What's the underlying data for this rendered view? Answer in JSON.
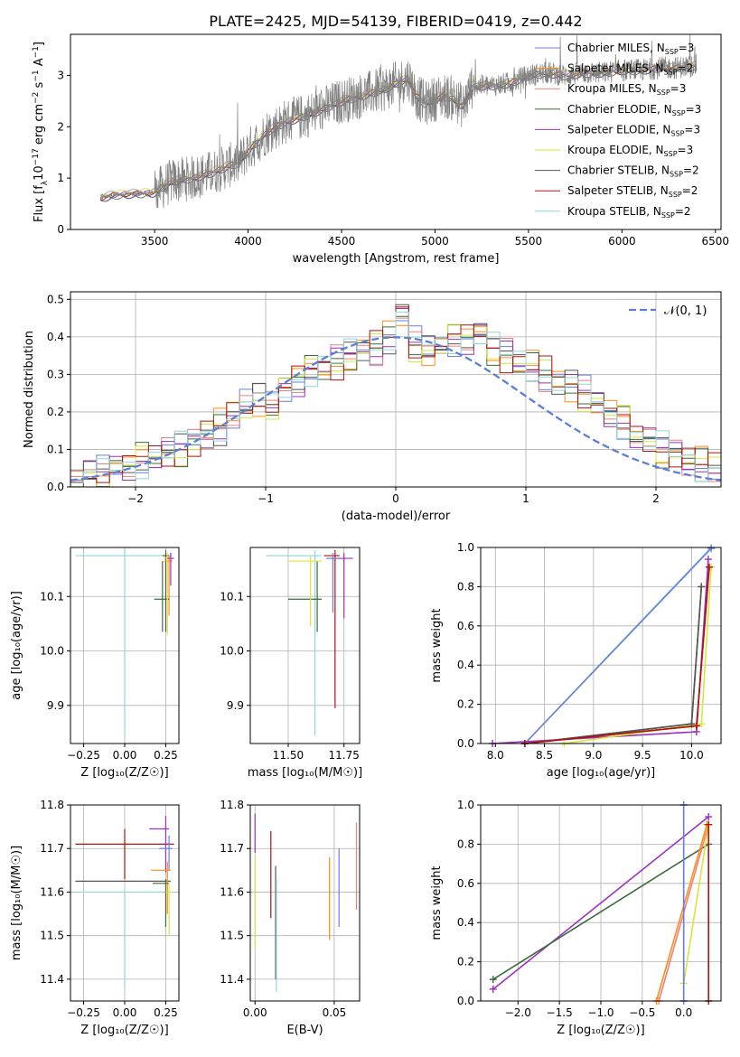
{
  "title": "PLATE=2425, MJD=54139, FIBERID=0419, z=0.442",
  "colors": {
    "Chabrier MILES": "#6a7fdc",
    "Salpeter MILES": "#ff8c1a",
    "Kroupa MILES": "#e8827a",
    "Chabrier ELODIE": "#3b6b3b",
    "Salpeter ELODIE": "#9b30c0",
    "Kroupa ELODIE": "#d6e63a",
    "Chabrier STELIB": "#555555",
    "Salpeter STELIB": "#b01010",
    "Kroupa STELIB": "#8fd6d6",
    "data": "#808080",
    "normal": "#5b7fd6"
  },
  "chart_data": [
    {
      "type": "line",
      "xlabel": "wavelength [Angstrom, rest frame]",
      "ylabel": "Flux [f_λ 10^-17 erg cm^-2 s^-1 A^-1]",
      "xlim": [
        3050,
        6530
      ],
      "ylim": [
        0,
        3.8
      ],
      "xticks": [
        "3500",
        "4000",
        "4500",
        "5000",
        "5500",
        "6000",
        "6500"
      ],
      "yticks": [
        "0",
        "1",
        "2",
        "3"
      ],
      "grid": false,
      "legend_position": "right",
      "legend": [
        {
          "label": "Chabrier MILES, N",
          "sub": "SSP",
          "tail": "=3"
        },
        {
          "label": "Salpeter MILES, N",
          "sub": "SSP",
          "tail": "=2"
        },
        {
          "label": "Kroupa MILES, N",
          "sub": "SSP",
          "tail": "=3"
        },
        {
          "label": "Chabrier ELODIE, N",
          "sub": "SSP",
          "tail": "=3"
        },
        {
          "label": "Salpeter ELODIE, N",
          "sub": "SSP",
          "tail": "=3"
        },
        {
          "label": "Kroupa ELODIE, N",
          "sub": "SSP",
          "tail": "=3"
        },
        {
          "label": "Chabrier STELIB, N",
          "sub": "SSP",
          "tail": "=2"
        },
        {
          "label": "Salpeter STELIB, N",
          "sub": "SSP",
          "tail": "=2"
        },
        {
          "label": "Kroupa STELIB, N",
          "sub": "SSP",
          "tail": "=2"
        }
      ],
      "model_continuum": {
        "x": [
          3210,
          3300,
          3400,
          3500,
          3550,
          3600,
          3700,
          3800,
          3900,
          3950,
          4000,
          4050,
          4100,
          4200,
          4300,
          4400,
          4500,
          4600,
          4700,
          4800,
          4860,
          4900,
          4950,
          5000,
          5050,
          5100,
          5150,
          5200,
          5300,
          5400,
          5500,
          5600,
          5700,
          5800,
          5900,
          6000,
          6100,
          6200,
          6300,
          6400
        ],
        "y": [
          0.62,
          0.68,
          0.7,
          0.72,
          0.85,
          0.95,
          1.0,
          1.1,
          1.25,
          1.3,
          1.55,
          1.7,
          1.9,
          2.1,
          2.2,
          2.35,
          2.5,
          2.6,
          2.7,
          2.85,
          2.95,
          2.6,
          2.45,
          2.55,
          2.6,
          2.55,
          2.4,
          2.8,
          2.8,
          2.85,
          3.0,
          3.05,
          3.0,
          3.05,
          3.05,
          3.1,
          3.1,
          3.15,
          3.15,
          3.2
        ]
      },
      "data_start_x": 3500,
      "noise_amplitude": 0.45
    },
    {
      "type": "histogram",
      "xlabel": "(data-model)/error",
      "ylabel": "Normed distribution",
      "xlim": [
        -2.5,
        2.5
      ],
      "ylim": [
        0,
        0.52
      ],
      "xticks": [
        "−2",
        "−1",
        "0",
        "1",
        "2"
      ],
      "yticks": [
        "0.0",
        "0.1",
        "0.2",
        "0.3",
        "0.4",
        "0.5"
      ],
      "grid": true,
      "legend_position": "top-right",
      "legend": [
        "𝒩(0, 1)"
      ],
      "bin_width": 0.1,
      "bin_start": -2.5,
      "center_values": [
        0.02,
        0.03,
        0.04,
        0.05,
        0.06,
        0.07,
        0.08,
        0.09,
        0.1,
        0.12,
        0.14,
        0.16,
        0.19,
        0.22,
        0.23,
        0.22,
        0.26,
        0.29,
        0.31,
        0.32,
        0.33,
        0.35,
        0.36,
        0.37,
        0.4,
        0.46,
        0.38,
        0.36,
        0.38,
        0.39,
        0.4,
        0.41,
        0.37,
        0.35,
        0.33,
        0.32,
        0.3,
        0.28,
        0.27,
        0.25,
        0.22,
        0.2,
        0.17,
        0.14,
        0.12,
        0.1,
        0.09,
        0.07,
        0.06,
        0.05
      ]
    },
    {
      "type": "scatter",
      "xlabel": "Z [log₁₀(Z/Z☉)]",
      "ylabel": "age  [log₁₀(age/yr)]",
      "xlim": [
        -0.33,
        0.33
      ],
      "ylim": [
        9.83,
        10.19
      ],
      "xticks": [
        {
          "v": -0.25,
          "t": "−0.25"
        },
        {
          "v": 0,
          "t": "0.00"
        },
        {
          "v": 0.25,
          "t": "0.25"
        }
      ],
      "yticks": [
        {
          "v": 9.9,
          "t": "9.9"
        },
        {
          "v": 10.0,
          "t": "10.0"
        },
        {
          "v": 10.1,
          "t": "10.1"
        }
      ],
      "points": [
        {
          "m": "Kroupa STELIB",
          "x": 0.0,
          "y": 10.175,
          "xe": [
            0.3,
            0.29
          ],
          "ye": [
            0.33,
            0.01
          ]
        },
        {
          "m": "Chabrier STELIB",
          "x": 0.25,
          "y": 10.175,
          "xe": [
            0.02,
            0.02
          ],
          "ye": [
            0.14,
            0.01
          ]
        },
        {
          "m": "Salpeter MILES",
          "x": 0.27,
          "y": 10.165,
          "xe": [
            0.03,
            0.02
          ],
          "ye": [
            0.1,
            0.01
          ]
        },
        {
          "m": "Chabrier ELODIE",
          "x": 0.23,
          "y": 10.095,
          "xe": [
            0.05,
            0.04
          ],
          "ye": [
            0.06,
            0.07
          ]
        },
        {
          "m": "Kroupa ELODIE",
          "x": 0.26,
          "y": 10.17,
          "xe": [
            0.02,
            0.03
          ],
          "ye": [
            0.14,
            0.01
          ]
        },
        {
          "m": "Salpeter ELODIE",
          "x": 0.28,
          "y": 10.17,
          "xe": [
            0.02,
            0.02
          ],
          "ye": [
            0.05,
            0.01
          ]
        }
      ]
    },
    {
      "type": "scatter",
      "xlabel": "mass [log₁₀(M/M☉)]",
      "ylabel": "",
      "xlim": [
        11.33,
        11.82
      ],
      "ylim": [
        9.83,
        10.19
      ],
      "xticks": [
        {
          "v": 11.5,
          "t": "11.50"
        },
        {
          "v": 11.75,
          "t": "11.75"
        }
      ],
      "yticks": [
        {
          "v": 9.9,
          "t": "9.9"
        },
        {
          "v": 10.0,
          "t": "10.0"
        },
        {
          "v": 10.1,
          "t": "10.1"
        }
      ],
      "points": [
        {
          "m": "Kroupa STELIB",
          "x": 11.62,
          "y": 10.175,
          "xe": [
            0.22,
            0.03
          ],
          "ye": [
            0.33,
            0.01
          ]
        },
        {
          "m": "Chabrier ELODIE",
          "x": 11.63,
          "y": 10.095,
          "xe": [
            0.13,
            0.02
          ],
          "ye": [
            0.06,
            0.07
          ]
        },
        {
          "m": "Salpeter ELODIE",
          "x": 11.75,
          "y": 10.17,
          "xe": [
            0.06,
            0.04
          ],
          "ye": [
            0.11,
            0.01
          ]
        },
        {
          "m": "Salpeter STELIB",
          "x": 11.71,
          "y": 10.175,
          "xe": [
            0.05,
            0.02
          ],
          "ye": [
            0.28,
            0.01
          ]
        },
        {
          "m": "Chabrier MILES",
          "x": 11.7,
          "y": 10.17,
          "xe": [
            0.03,
            0.02
          ],
          "ye": [
            0.1,
            0.01
          ]
        },
        {
          "m": "Kroupa ELODIE",
          "x": 11.6,
          "y": 10.165,
          "xe": [
            0.1,
            0.05
          ],
          "ye": [
            0.12,
            0.01
          ]
        }
      ]
    },
    {
      "type": "line",
      "xlabel": "age  [log₁₀(age/yr)]",
      "ylabel": "mass weight",
      "xlim": [
        7.85,
        10.3
      ],
      "ylim": [
        0,
        1.0
      ],
      "xticks": [
        {
          "v": 8.0,
          "t": "8.0"
        },
        {
          "v": 8.5,
          "t": "8.5"
        },
        {
          "v": 9.0,
          "t": "9.0"
        },
        {
          "v": 9.5,
          "t": "9.5"
        },
        {
          "v": 10.0,
          "t": "10.0"
        }
      ],
      "yticks": [
        {
          "v": 0,
          "t": "0.0"
        },
        {
          "v": 0.2,
          "t": "0.2"
        },
        {
          "v": 0.4,
          "t": "0.4"
        },
        {
          "v": 0.6,
          "t": "0.6"
        },
        {
          "v": 0.8,
          "t": "0.8"
        },
        {
          "v": 1.0,
          "t": "1.0"
        }
      ],
      "series": [
        {
          "m": "Kroupa STELIB",
          "x": [
            8.3,
            10.2
          ],
          "y": [
            0.0,
            1.0
          ]
        },
        {
          "m": "Chabrier MILES",
          "x": [
            8.3,
            10.2
          ],
          "y": [
            0.0,
            0.995
          ]
        },
        {
          "m": "Salpeter MILES",
          "x": [
            8.3,
            10.05,
            10.18
          ],
          "y": [
            0.0,
            0.09,
            0.9
          ]
        },
        {
          "m": "Kroupa MILES",
          "x": [
            8.3,
            10.05,
            10.18
          ],
          "y": [
            0.0,
            0.09,
            0.9
          ]
        },
        {
          "m": "Chabrier ELODIE",
          "x": [
            8.3,
            10.0,
            10.1
          ],
          "y": [
            0.0,
            0.1,
            0.8
          ]
        },
        {
          "m": "Salpeter ELODIE",
          "x": [
            7.97,
            10.05,
            10.17
          ],
          "y": [
            0.0,
            0.06,
            0.94
          ]
        },
        {
          "m": "Kroupa ELODIE",
          "x": [
            8.7,
            10.1,
            10.2
          ],
          "y": [
            0.0,
            0.1,
            0.9
          ]
        },
        {
          "m": "Chabrier STELIB",
          "x": [
            8.3,
            10.0,
            10.1
          ],
          "y": [
            0.0,
            0.1,
            0.8
          ]
        },
        {
          "m": "Salpeter STELIB",
          "x": [
            8.3,
            10.05,
            10.18
          ],
          "y": [
            0.0,
            0.09,
            0.9
          ]
        }
      ]
    },
    {
      "type": "scatter",
      "xlabel": "Z [log₁₀(Z/Z☉)]",
      "ylabel": "mass [log₁₀(M/M☉)]",
      "xlim": [
        -0.33,
        0.33
      ],
      "ylim": [
        11.35,
        11.8
      ],
      "xticks": [
        {
          "v": -0.25,
          "t": "−0.25"
        },
        {
          "v": 0,
          "t": "0.00"
        },
        {
          "v": 0.25,
          "t": "0.25"
        }
      ],
      "yticks": [
        {
          "v": 11.4,
          "t": "11.4"
        },
        {
          "v": 11.5,
          "t": "11.5"
        },
        {
          "v": 11.6,
          "t": "11.6"
        },
        {
          "v": 11.7,
          "t": "11.7"
        },
        {
          "v": 11.8,
          "t": "11.8"
        }
      ],
      "points": [
        {
          "m": "Salpeter STELIB",
          "x": 0.0,
          "y": 11.71,
          "xe": [
            0.3,
            0.3
          ],
          "ye": [
            0.08,
            0.035
          ]
        },
        {
          "m": "Chabrier STELIB",
          "x": 0.0,
          "y": 11.625,
          "xe": [
            0.3,
            0.28
          ],
          "ye": [
            0.0,
            0.0
          ]
        },
        {
          "m": "Kroupa STELIB",
          "x": 0.0,
          "y": 11.6,
          "xe": [
            0.3,
            0.3
          ],
          "ye": [
            0.22,
            0.0
          ]
        },
        {
          "m": "Salpeter ELODIE",
          "x": 0.25,
          "y": 11.745,
          "xe": [
            0.1,
            0.02
          ],
          "ye": [
            0.1,
            0.03
          ]
        },
        {
          "m": "Chabrier MILES",
          "x": 0.27,
          "y": 11.7,
          "xe": [
            0.06,
            0.02
          ],
          "ye": [
            0.05,
            0.03
          ]
        },
        {
          "m": "Salpeter MILES",
          "x": 0.26,
          "y": 11.65,
          "xe": [
            0.1,
            0.02
          ],
          "ye": [
            0.1,
            0.02
          ]
        },
        {
          "m": "Chabrier ELODIE",
          "x": 0.25,
          "y": 11.62,
          "xe": [
            0.08,
            0.02
          ],
          "ye": [
            0.1,
            0.01
          ]
        },
        {
          "m": "Kroupa ELODIE",
          "x": 0.27,
          "y": 11.6,
          "xe": [
            0.02,
            0.02
          ],
          "ye": [
            0.1,
            0.02
          ]
        }
      ]
    },
    {
      "type": "errorbar",
      "xlabel": "E(B-V)",
      "ylabel": "",
      "xlim": [
        -0.003,
        0.066
      ],
      "ylim": [
        11.35,
        11.8
      ],
      "xticks": [
        {
          "v": 0,
          "t": "0.00"
        },
        {
          "v": 0.05,
          "t": "0.05"
        }
      ],
      "yticks": [
        {
          "v": 11.4,
          "t": "11.4"
        },
        {
          "v": 11.5,
          "t": "11.5"
        },
        {
          "v": 11.6,
          "t": "11.6"
        },
        {
          "v": 11.7,
          "t": "11.7"
        },
        {
          "v": 11.8,
          "t": "11.8"
        }
      ],
      "points": [
        {
          "m": "Salpeter ELODIE",
          "x": 0.0,
          "y1": 11.69,
          "y2": 11.78
        },
        {
          "m": "Kroupa ELODIE",
          "x": 0.0,
          "y1": 11.47,
          "y2": 11.68
        },
        {
          "m": "Salpeter STELIB",
          "x": 0.01,
          "y1": 11.54,
          "y2": 11.74
        },
        {
          "m": "Chabrier STELIB",
          "x": 0.013,
          "y1": 11.4,
          "y2": 11.66
        },
        {
          "m": "Kroupa STELIB",
          "x": 0.0135,
          "y1": 11.37,
          "y2": 11.63
        },
        {
          "m": "Salpeter MILES",
          "x": 0.047,
          "y1": 11.49,
          "y2": 11.68
        },
        {
          "m": "Chabrier MILES",
          "x": 0.053,
          "y1": 11.52,
          "y2": 11.7
        },
        {
          "m": "Kroupa MILES",
          "x": 0.064,
          "y1": 11.56,
          "y2": 11.76
        }
      ]
    },
    {
      "type": "line",
      "xlabel": "Z [log₁₀(Z/Z☉)]",
      "ylabel": "mass weight",
      "xlim": [
        -2.45,
        0.45
      ],
      "ylim": [
        0,
        1.0
      ],
      "xticks": [
        {
          "v": -2.0,
          "t": "−2.0"
        },
        {
          "v": -1.5,
          "t": "−1.5"
        },
        {
          "v": -1.0,
          "t": "−1.0"
        },
        {
          "v": -0.5,
          "t": "−0.5"
        },
        {
          "v": 0.0,
          "t": "0.0"
        }
      ],
      "yticks": [
        {
          "v": 0,
          "t": "0.0"
        },
        {
          "v": 0.2,
          "t": "0.2"
        },
        {
          "v": 0.4,
          "t": "0.4"
        },
        {
          "v": 0.6,
          "t": "0.6"
        },
        {
          "v": 0.8,
          "t": "0.8"
        },
        {
          "v": 1.0,
          "t": "1.0"
        }
      ],
      "series": [
        {
          "m": "Salpeter ELODIE",
          "x": [
            -2.3,
            0.3
          ],
          "y": [
            0.06,
            0.94
          ]
        },
        {
          "m": "Chabrier ELODIE",
          "x": [
            -2.3,
            0.3
          ],
          "y": [
            0.11,
            0.8
          ]
        },
        {
          "m": "Kroupa MILES",
          "x": [
            -0.3,
            0.3
          ],
          "y": [
            0.0,
            0.9
          ]
        },
        {
          "m": "Salpeter MILES",
          "x": [
            -0.33,
            0.28
          ],
          "y": [
            0.0,
            0.9
          ]
        },
        {
          "m": "Kroupa ELODIE",
          "x": [
            0.0,
            0.3
          ],
          "y": [
            0.09,
            0.9
          ]
        },
        {
          "m": "Kroupa STELIB",
          "x": [
            0.0,
            0.0
          ],
          "y": [
            0.0,
            1.0
          ]
        },
        {
          "m": "Chabrier MILES",
          "x": [
            0.0,
            0.0
          ],
          "y": [
            0.0,
            1.0
          ]
        },
        {
          "m": "Salpeter STELIB",
          "x": [
            0.3,
            0.3
          ],
          "y": [
            0.0,
            0.9
          ]
        }
      ]
    }
  ]
}
